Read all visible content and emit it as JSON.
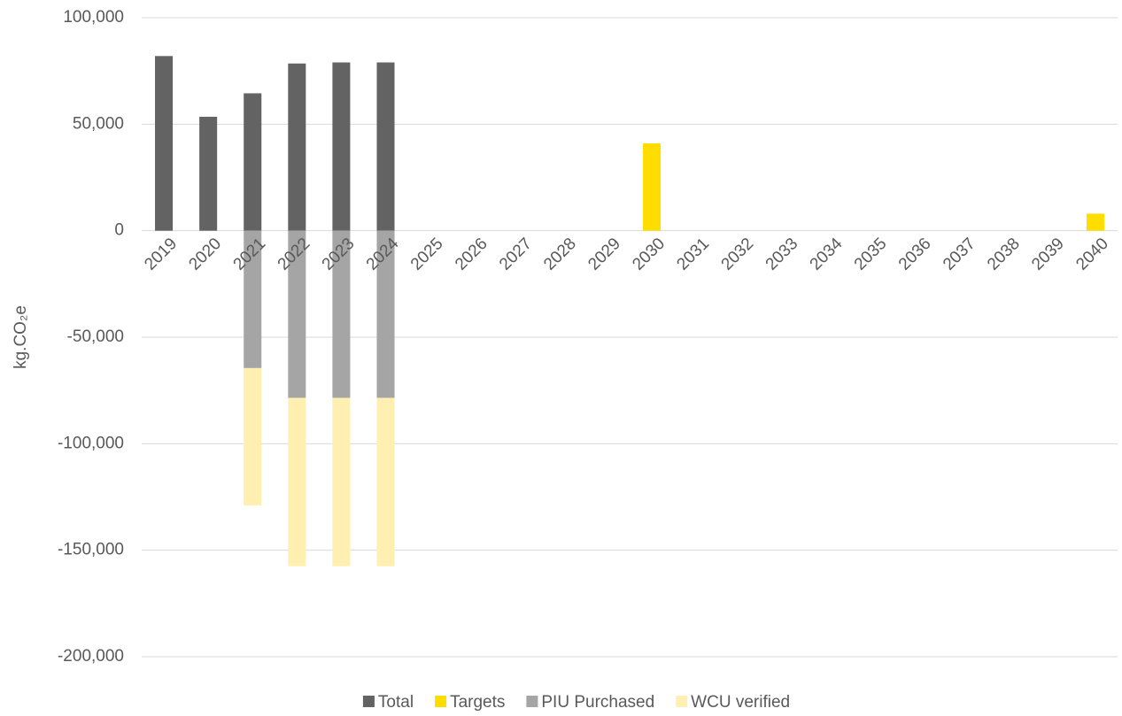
{
  "chart_data": {
    "type": "bar",
    "stacked": true,
    "y_label": "kg.CO₂e",
    "categories": [
      "2019",
      "2020",
      "2021",
      "2022",
      "2023",
      "2024",
      "2025",
      "2026",
      "2027",
      "2028",
      "2029",
      "2030",
      "2031",
      "2032",
      "2033",
      "2034",
      "2035",
      "2036",
      "2037",
      "2038",
      "2039",
      "2040"
    ],
    "series": [
      {
        "name": "Total",
        "color": "#636363",
        "values": [
          82000,
          53500,
          64500,
          78500,
          79000,
          79000,
          null,
          null,
          null,
          null,
          null,
          null,
          null,
          null,
          null,
          null,
          null,
          null,
          null,
          null,
          null,
          null
        ]
      },
      {
        "name": "Targets",
        "color": "#ffdd00",
        "values": [
          null,
          null,
          null,
          null,
          null,
          null,
          null,
          null,
          null,
          null,
          null,
          41000,
          null,
          null,
          null,
          null,
          null,
          null,
          null,
          null,
          null,
          8000
        ]
      },
      {
        "name": "PIU Purchased",
        "color": "#a5a5a5",
        "values": [
          null,
          null,
          -64500,
          -78500,
          -78500,
          -78500,
          null,
          null,
          null,
          null,
          null,
          null,
          null,
          null,
          null,
          null,
          null,
          null,
          null,
          null,
          null,
          null
        ]
      },
      {
        "name": "WCU verified",
        "color": "#ffefb0",
        "values": [
          null,
          null,
          -64500,
          -79000,
          -79000,
          -79000,
          null,
          null,
          null,
          null,
          null,
          null,
          null,
          null,
          null,
          null,
          null,
          null,
          null,
          null,
          null,
          null
        ]
      }
    ],
    "ylim": [
      -200000,
      100000
    ],
    "yticks": [
      {
        "value": 100000,
        "label": "100,000"
      },
      {
        "value": 50000,
        "label": "50,000"
      },
      0,
      {
        "value": -50000,
        "label": "-50,000"
      },
      {
        "value": -100000,
        "label": "-100,000"
      },
      {
        "value": -150000,
        "label": "-150,000"
      },
      {
        "value": -200000,
        "label": "-200,000"
      }
    ],
    "grid": true,
    "legend": "bottom"
  }
}
